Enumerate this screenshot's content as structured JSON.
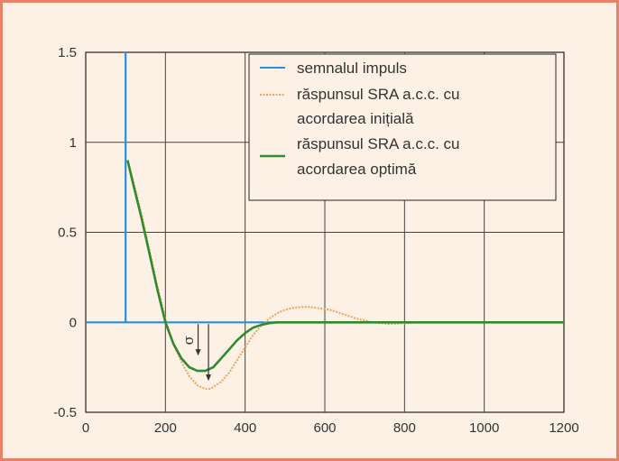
{
  "chart_data": {
    "type": "line",
    "xlim": [
      0,
      1200
    ],
    "ylim": [
      -0.5,
      1.5
    ],
    "xticks": [
      0,
      200,
      400,
      600,
      800,
      1000,
      1200
    ],
    "yticks": [
      -0.5,
      0,
      0.5,
      1,
      1.5
    ],
    "xtick_labels": [
      "0",
      "200",
      "400",
      "600",
      "800",
      "1000",
      "1200"
    ],
    "ytick_labels": [
      "-0.5",
      "0",
      "0.5",
      "1",
      "1.5"
    ],
    "grid": true,
    "legend_position": "top-right",
    "annotation": {
      "text": "σ",
      "x": 300,
      "y_from": -0.2,
      "y_to": -0.3
    },
    "series": [
      {
        "name": "semnalul impuls",
        "color": "#2a8fd6",
        "x": [
          0,
          100,
          100,
          100,
          105,
          105,
          1200
        ],
        "y": [
          0,
          0,
          1.5,
          0,
          0,
          0,
          0
        ]
      },
      {
        "name": "răspunsul SRA a.c.c. cu acordarea inițială",
        "color": "#f0a060",
        "dashed": true,
        "x": [
          105,
          120,
          140,
          160,
          180,
          200,
          220,
          240,
          260,
          280,
          300,
          310,
          320,
          340,
          360,
          380,
          400,
          420,
          440,
          460,
          480,
          500,
          520,
          540,
          560,
          580,
          600,
          620,
          640,
          660,
          680,
          700,
          720,
          740,
          760,
          780,
          800,
          850,
          900,
          1000,
          1200
        ],
        "y": [
          0.9,
          0.78,
          0.6,
          0.4,
          0.2,
          0.02,
          -0.12,
          -0.22,
          -0.3,
          -0.35,
          -0.37,
          -0.37,
          -0.36,
          -0.33,
          -0.28,
          -0.21,
          -0.14,
          -0.07,
          -0.02,
          0.02,
          0.05,
          0.07,
          0.08,
          0.085,
          0.085,
          0.08,
          0.075,
          0.065,
          0.05,
          0.035,
          0.02,
          0.01,
          0.0,
          -0.005,
          -0.01,
          -0.008,
          -0.005,
          0.0,
          0.0,
          0.0,
          0.0
        ]
      },
      {
        "name": "răspunsul SRA a.c.c. cu acordarea optimă",
        "color": "#2e8b2e",
        "x": [
          105,
          120,
          140,
          160,
          180,
          200,
          220,
          240,
          260,
          280,
          300,
          320,
          340,
          360,
          380,
          400,
          420,
          440,
          460,
          480,
          500,
          550,
          600,
          700,
          800,
          1000,
          1200
        ],
        "y": [
          0.9,
          0.76,
          0.58,
          0.38,
          0.18,
          0.0,
          -0.12,
          -0.2,
          -0.25,
          -0.27,
          -0.27,
          -0.25,
          -0.2,
          -0.15,
          -0.1,
          -0.06,
          -0.03,
          -0.015,
          -0.005,
          0.0,
          0.0,
          0.0,
          0.0,
          0.0,
          0.0,
          0.0,
          0.0
        ]
      }
    ]
  },
  "legend": {
    "items": [
      {
        "line1": "semnalul impuls",
        "line2": ""
      },
      {
        "line1": "răspunsul SRA a.c.c. cu",
        "line2": "acordarea inițială"
      },
      {
        "line1": "răspunsul SRA a.c.c. cu",
        "line2": "acordarea optimă"
      }
    ]
  }
}
